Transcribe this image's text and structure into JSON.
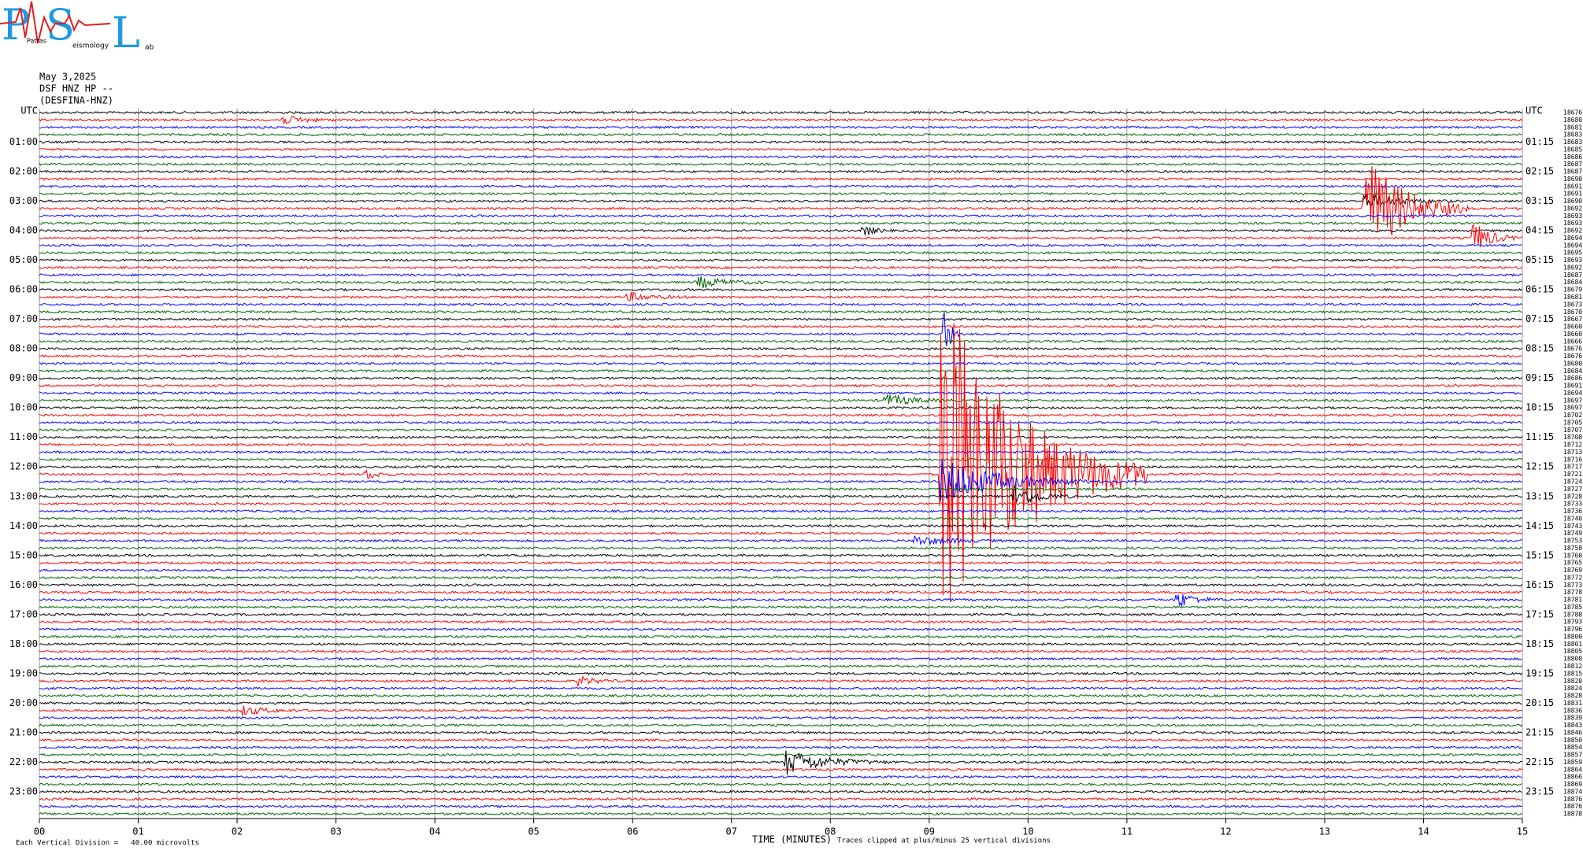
{
  "logo": {
    "letters": [
      "P",
      "S",
      "L"
    ],
    "words": [
      "Patras",
      "eismology",
      "ab"
    ]
  },
  "header": {
    "date": "May 3,2025",
    "station": "DSF HNZ HP --",
    "name": "(DESFINA-HNZ)"
  },
  "left_labels": [
    "UTC",
    "01:00",
    "02:00",
    "03:00",
    "04:00",
    "05:00",
    "06:00",
    "07:00",
    "08:00",
    "09:00",
    "10:00",
    "11:00",
    "12:00",
    "13:00",
    "14:00",
    "15:00",
    "16:00",
    "17:00",
    "18:00",
    "19:00",
    "20:00",
    "21:00",
    "22:00",
    "23:00"
  ],
  "right_labels": [
    "UTC",
    "01:15",
    "02:15",
    "03:15",
    "04:15",
    "05:15",
    "06:15",
    "07:15",
    "08:15",
    "09:15",
    "10:15",
    "11:15",
    "12:15",
    "13:15",
    "14:15",
    "15:15",
    "16:15",
    "17:15",
    "18:15",
    "19:15",
    "20:15",
    "21:15",
    "22:15",
    "23:15"
  ],
  "trace_counts": [
    18676,
    18680,
    18681,
    18683,
    18683,
    18685,
    18686,
    18687,
    18687,
    18690,
    18691,
    18691,
    18690,
    18692,
    18693,
    18693,
    18692,
    18694,
    18694,
    18695,
    18693,
    18692,
    18687,
    18684,
    18679,
    18681,
    18673,
    18670,
    18667,
    18660,
    18660,
    18666,
    18676,
    18676,
    18680,
    18684,
    18686,
    18691,
    18694,
    18697,
    18697,
    18702,
    18705,
    18707,
    18708,
    18712,
    18713,
    18716,
    18717,
    18721,
    18724,
    18727,
    18728,
    18733,
    18736,
    18740,
    18743,
    18749,
    18753,
    18758,
    18760,
    18765,
    18769,
    18772,
    18773,
    18778,
    18781,
    18785,
    18788,
    18793,
    18796,
    18800,
    18801,
    18805,
    18808,
    18812,
    18815,
    18820,
    18824,
    18828,
    18831,
    18836,
    18839,
    18843,
    18846,
    18850,
    18854,
    18857,
    18859,
    18864,
    18866,
    18869,
    18874,
    18876,
    18876,
    18878
  ],
  "x_ticks": [
    "00",
    "01",
    "02",
    "03",
    "04",
    "05",
    "06",
    "07",
    "08",
    "09",
    "10",
    "11",
    "12",
    "13",
    "14",
    "15"
  ],
  "footer": {
    "scale": "Each Vertical Division =   40.00 microvolts",
    "x_title": "TIME (MINUTES)",
    "clip": "Traces clipped at plus/minus 25 vertical divisions"
  }
}
